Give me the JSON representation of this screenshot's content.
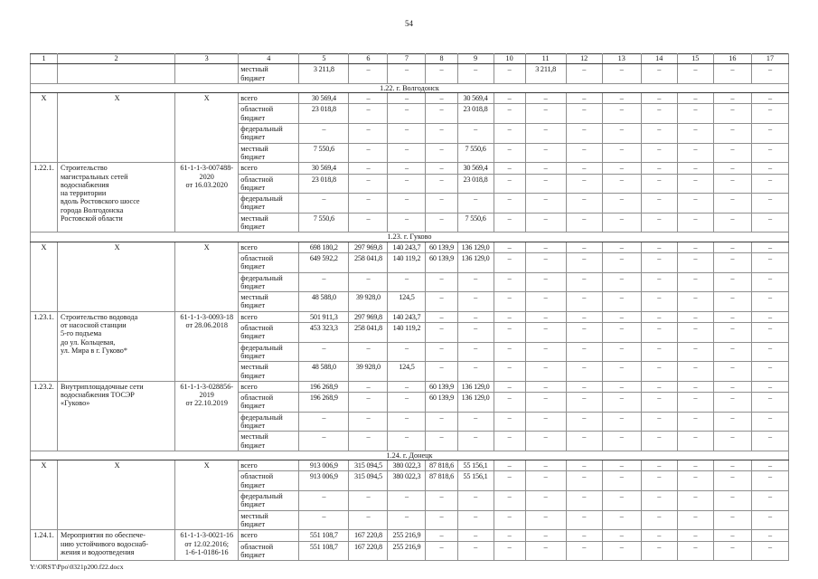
{
  "page": {
    "number": "54",
    "footer_path": "Y:\\ORST\\Ppo\\0321p200.f22.docx"
  },
  "table": {
    "column_headers": [
      "1",
      "2",
      "3",
      "4",
      "5",
      "6",
      "7",
      "8",
      "9",
      "10",
      "11",
      "12",
      "13",
      "14",
      "15",
      "16",
      "17"
    ],
    "rows": [
      {
        "type": "carryover",
        "budget": "местный\nбюджет",
        "values": [
          "3 211,8",
          "–",
          "–",
          "–",
          "–",
          "–",
          "3 211,8",
          "–",
          "–",
          "–",
          "–",
          "–",
          "–"
        ]
      },
      {
        "type": "section",
        "label": "1.22. г. Волгодонск"
      },
      {
        "type": "group",
        "id": "X",
        "name": "X",
        "code": "X",
        "lines": [
          {
            "budget": "всего",
            "values": [
              "30 569,4",
              "–",
              "–",
              "–",
              "30 569,4",
              "–",
              "–",
              "–",
              "–",
              "–",
              "–",
              "–",
              "–"
            ]
          },
          {
            "budget": "областной\nбюджет",
            "values": [
              "23 018,8",
              "–",
              "–",
              "–",
              "23 018,8",
              "–",
              "–",
              "–",
              "–",
              "–",
              "–",
              "–",
              "–"
            ]
          },
          {
            "budget": "федеральный\nбюджет",
            "values": [
              "–",
              "–",
              "–",
              "–",
              "–",
              "–",
              "–",
              "–",
              "–",
              "–",
              "–",
              "–",
              "–"
            ]
          },
          {
            "budget": "местный\nбюджет",
            "values": [
              "7 550,6",
              "–",
              "–",
              "–",
              "7 550,6",
              "–",
              "–",
              "–",
              "–",
              "–",
              "–",
              "–",
              "–"
            ]
          }
        ]
      },
      {
        "type": "group",
        "id": "1.22.1.",
        "name": "Строительство\nмагистральных сетей\nводоснабжения\nна территории\nвдоль Ростовского шоссе\nгорода Волгодонска\nРостовской области",
        "code": "61-1-1-3-007488-\n2020\nот 16.03.2020",
        "lines": [
          {
            "budget": "всего",
            "values": [
              "30 569,4",
              "–",
              "–",
              "–",
              "30 569,4",
              "–",
              "–",
              "–",
              "–",
              "–",
              "–",
              "–",
              "–"
            ]
          },
          {
            "budget": "областной\nбюджет",
            "values": [
              "23 018,8",
              "–",
              "–",
              "–",
              "23 018,8",
              "–",
              "–",
              "–",
              "–",
              "–",
              "–",
              "–",
              "–"
            ]
          },
          {
            "budget": "федеральный\nбюджет",
            "values": [
              "–",
              "–",
              "–",
              "–",
              "–",
              "–",
              "–",
              "–",
              "–",
              "–",
              "–",
              "–",
              "–"
            ]
          },
          {
            "budget": "местный\nбюджет",
            "values": [
              "7 550,6",
              "–",
              "–",
              "–",
              "7 550,6",
              "–",
              "–",
              "–",
              "–",
              "–",
              "–",
              "–",
              "–"
            ]
          }
        ]
      },
      {
        "type": "section",
        "label": "1.23. г. Гуково"
      },
      {
        "type": "group",
        "id": "X",
        "name": "X",
        "code": "X",
        "lines": [
          {
            "budget": "всего",
            "values": [
              "698 180,2",
              "297 969,8",
              "140 243,7",
              "60 139,9",
              "136 129,0",
              "–",
              "–",
              "–",
              "–",
              "–",
              "–",
              "–",
              "–"
            ]
          },
          {
            "budget": "областной\nбюджет",
            "values": [
              "649 592,2",
              "258 041,8",
              "140 119,2",
              "60 139,9",
              "136 129,0",
              "–",
              "–",
              "–",
              "–",
              "–",
              "–",
              "–",
              "–"
            ]
          },
          {
            "budget": "федеральный\nбюджет",
            "values": [
              "–",
              "–",
              "–",
              "–",
              "–",
              "–",
              "–",
              "–",
              "–",
              "–",
              "–",
              "–",
              "–"
            ]
          },
          {
            "budget": "местный\nбюджет",
            "values": [
              "48 588,0",
              "39 928,0",
              "124,5",
              "–",
              "–",
              "–",
              "–",
              "–",
              "–",
              "–",
              "–",
              "–",
              "–"
            ]
          }
        ]
      },
      {
        "type": "group",
        "id": "1.23.1.",
        "name": "Строительство водовода\nот насосной станции\n5-го подъема\nдо ул. Кольцевая,\nул. Мира в г. Гуково*",
        "code": "61-1-1-3-0093-18\nот 28.06.2018",
        "lines": [
          {
            "budget": "всего",
            "values": [
              "501 911,3",
              "297 969,8",
              "140 243,7",
              "–",
              "–",
              "–",
              "–",
              "–",
              "–",
              "–",
              "–",
              "–",
              "–"
            ]
          },
          {
            "budget": "областной\nбюджет",
            "values": [
              "453 323,3",
              "258 041,8",
              "140 119,2",
              "–",
              "–",
              "–",
              "–",
              "–",
              "–",
              "–",
              "–",
              "–",
              "–"
            ]
          },
          {
            "budget": "федеральный\nбюджет",
            "values": [
              "–",
              "–",
              "–",
              "–",
              "–",
              "–",
              "–",
              "–",
              "–",
              "–",
              "–",
              "–",
              "–"
            ]
          },
          {
            "budget": "местный\nбюджет",
            "values": [
              "48 588,0",
              "39 928,0",
              "124,5",
              "–",
              "–",
              "–",
              "–",
              "–",
              "–",
              "–",
              "–",
              "–",
              "–"
            ]
          }
        ]
      },
      {
        "type": "group",
        "id": "1.23.2.",
        "name": "Внутриплощадочные сети\nводоснабжения ТОСЭР\n«Гуково»",
        "code": "61-1-1-3-028856-\n2019\nот 22.10.2019",
        "lines": [
          {
            "budget": "всего",
            "values": [
              "196 268,9",
              "–",
              "–",
              "60 139,9",
              "136 129,0",
              "–",
              "–",
              "–",
              "–",
              "–",
              "–",
              "–",
              "–"
            ]
          },
          {
            "budget": "областной\nбюджет",
            "values": [
              "196 268,9",
              "–",
              "–",
              "60 139,9",
              "136 129,0",
              "–",
              "–",
              "–",
              "–",
              "–",
              "–",
              "–",
              "–"
            ]
          },
          {
            "budget": "федеральный\nбюджет",
            "values": [
              "–",
              "–",
              "–",
              "–",
              "–",
              "–",
              "–",
              "–",
              "–",
              "–",
              "–",
              "–",
              "–"
            ]
          },
          {
            "budget": "местный\nбюджет",
            "values": [
              "–",
              "–",
              "–",
              "–",
              "–",
              "–",
              "–",
              "–",
              "–",
              "–",
              "–",
              "–",
              "–"
            ]
          }
        ]
      },
      {
        "type": "section",
        "label": "1.24. г. Донецк"
      },
      {
        "type": "group",
        "id": "X",
        "name": "X",
        "code": "X",
        "lines": [
          {
            "budget": "всего",
            "values": [
              "913 006,9",
              "315 094,5",
              "380 022,3",
              "87 818,6",
              "55 156,1",
              "–",
              "–",
              "–",
              "–",
              "–",
              "–",
              "–",
              "–"
            ]
          },
          {
            "budget": "областной\nбюджет",
            "values": [
              "913 006,9",
              "315 094,5",
              "380 022,3",
              "87 818,6",
              "55 156,1",
              "–",
              "–",
              "–",
              "–",
              "–",
              "–",
              "–",
              "–"
            ]
          },
          {
            "budget": "федеральный\nбюджет",
            "values": [
              "–",
              "–",
              "–",
              "–",
              "–",
              "–",
              "–",
              "–",
              "–",
              "–",
              "–",
              "–",
              "–"
            ]
          },
          {
            "budget": "местный\nбюджет",
            "values": [
              "–",
              "–",
              "–",
              "–",
              "–",
              "–",
              "–",
              "–",
              "–",
              "–",
              "–",
              "–",
              "–"
            ]
          }
        ]
      },
      {
        "type": "group",
        "id": "1.24.1.",
        "name": "Мероприятия по обеспече-\nнию устойчивого водоснаб-\nжения и водоотведения",
        "code": "61-1-1-3-0021-16\nот 12.02.2016;\n1-6-1-0186-16",
        "lines": [
          {
            "budget": "всего",
            "values": [
              "551 108,7",
              "167 220,8",
              "255 216,9",
              "–",
              "–",
              "–",
              "–",
              "–",
              "–",
              "–",
              "–",
              "–",
              "–"
            ]
          },
          {
            "budget": "областной\nбюджет",
            "values": [
              "551 108,7",
              "167 220,8",
              "255 216,9",
              "–",
              "–",
              "–",
              "–",
              "–",
              "–",
              "–",
              "–",
              "–",
              "–"
            ]
          }
        ]
      }
    ]
  }
}
